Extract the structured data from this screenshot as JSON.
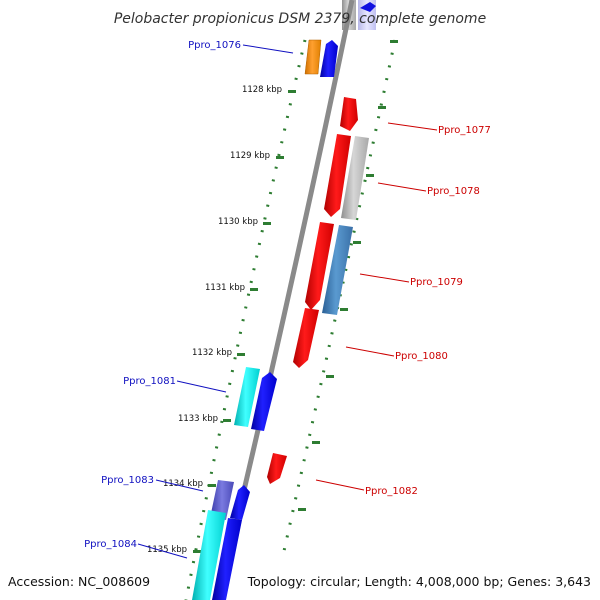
{
  "title": "Pelobacter propionicus DSM 2379, complete genome",
  "footer": {
    "accession": "Accession: NC_008609",
    "topology": "Topology: circular; Length: 4,008,000 bp; Genes: 3,643"
  },
  "colors": {
    "backbone": "#8a8a8a",
    "tick": "#2e7d32",
    "label_left": "#1010c0",
    "label_right": "#cc0000"
  },
  "kbp_ticks": [
    "1128 kbp",
    "1129 kbp",
    "1130 kbp",
    "1131 kbp",
    "1132 kbp",
    "1133 kbp",
    "1134 kbp",
    "1135 kbp"
  ],
  "genes": [
    {
      "id": "ppro-1076",
      "label": "Ppro_1076",
      "side": "left",
      "color": "blue"
    },
    {
      "id": "ppro-1077",
      "label": "Ppro_1077",
      "side": "right",
      "color": "red"
    },
    {
      "id": "ppro-1078",
      "label": "Ppro_1078",
      "side": "right",
      "color": "red"
    },
    {
      "id": "ppro-1079",
      "label": "Ppro_1079",
      "side": "right",
      "color": "red"
    },
    {
      "id": "ppro-1080",
      "label": "Ppro_1080",
      "side": "right",
      "color": "red"
    },
    {
      "id": "ppro-1081",
      "label": "Ppro_1081",
      "side": "left",
      "color": "blue"
    },
    {
      "id": "ppro-1082",
      "label": "Ppro_1082",
      "side": "right",
      "color": "red"
    },
    {
      "id": "ppro-1083",
      "label": "Ppro_1083",
      "side": "left",
      "color": "blue"
    },
    {
      "id": "ppro-1084",
      "label": "Ppro_1084",
      "side": "left",
      "color": "blue"
    }
  ]
}
